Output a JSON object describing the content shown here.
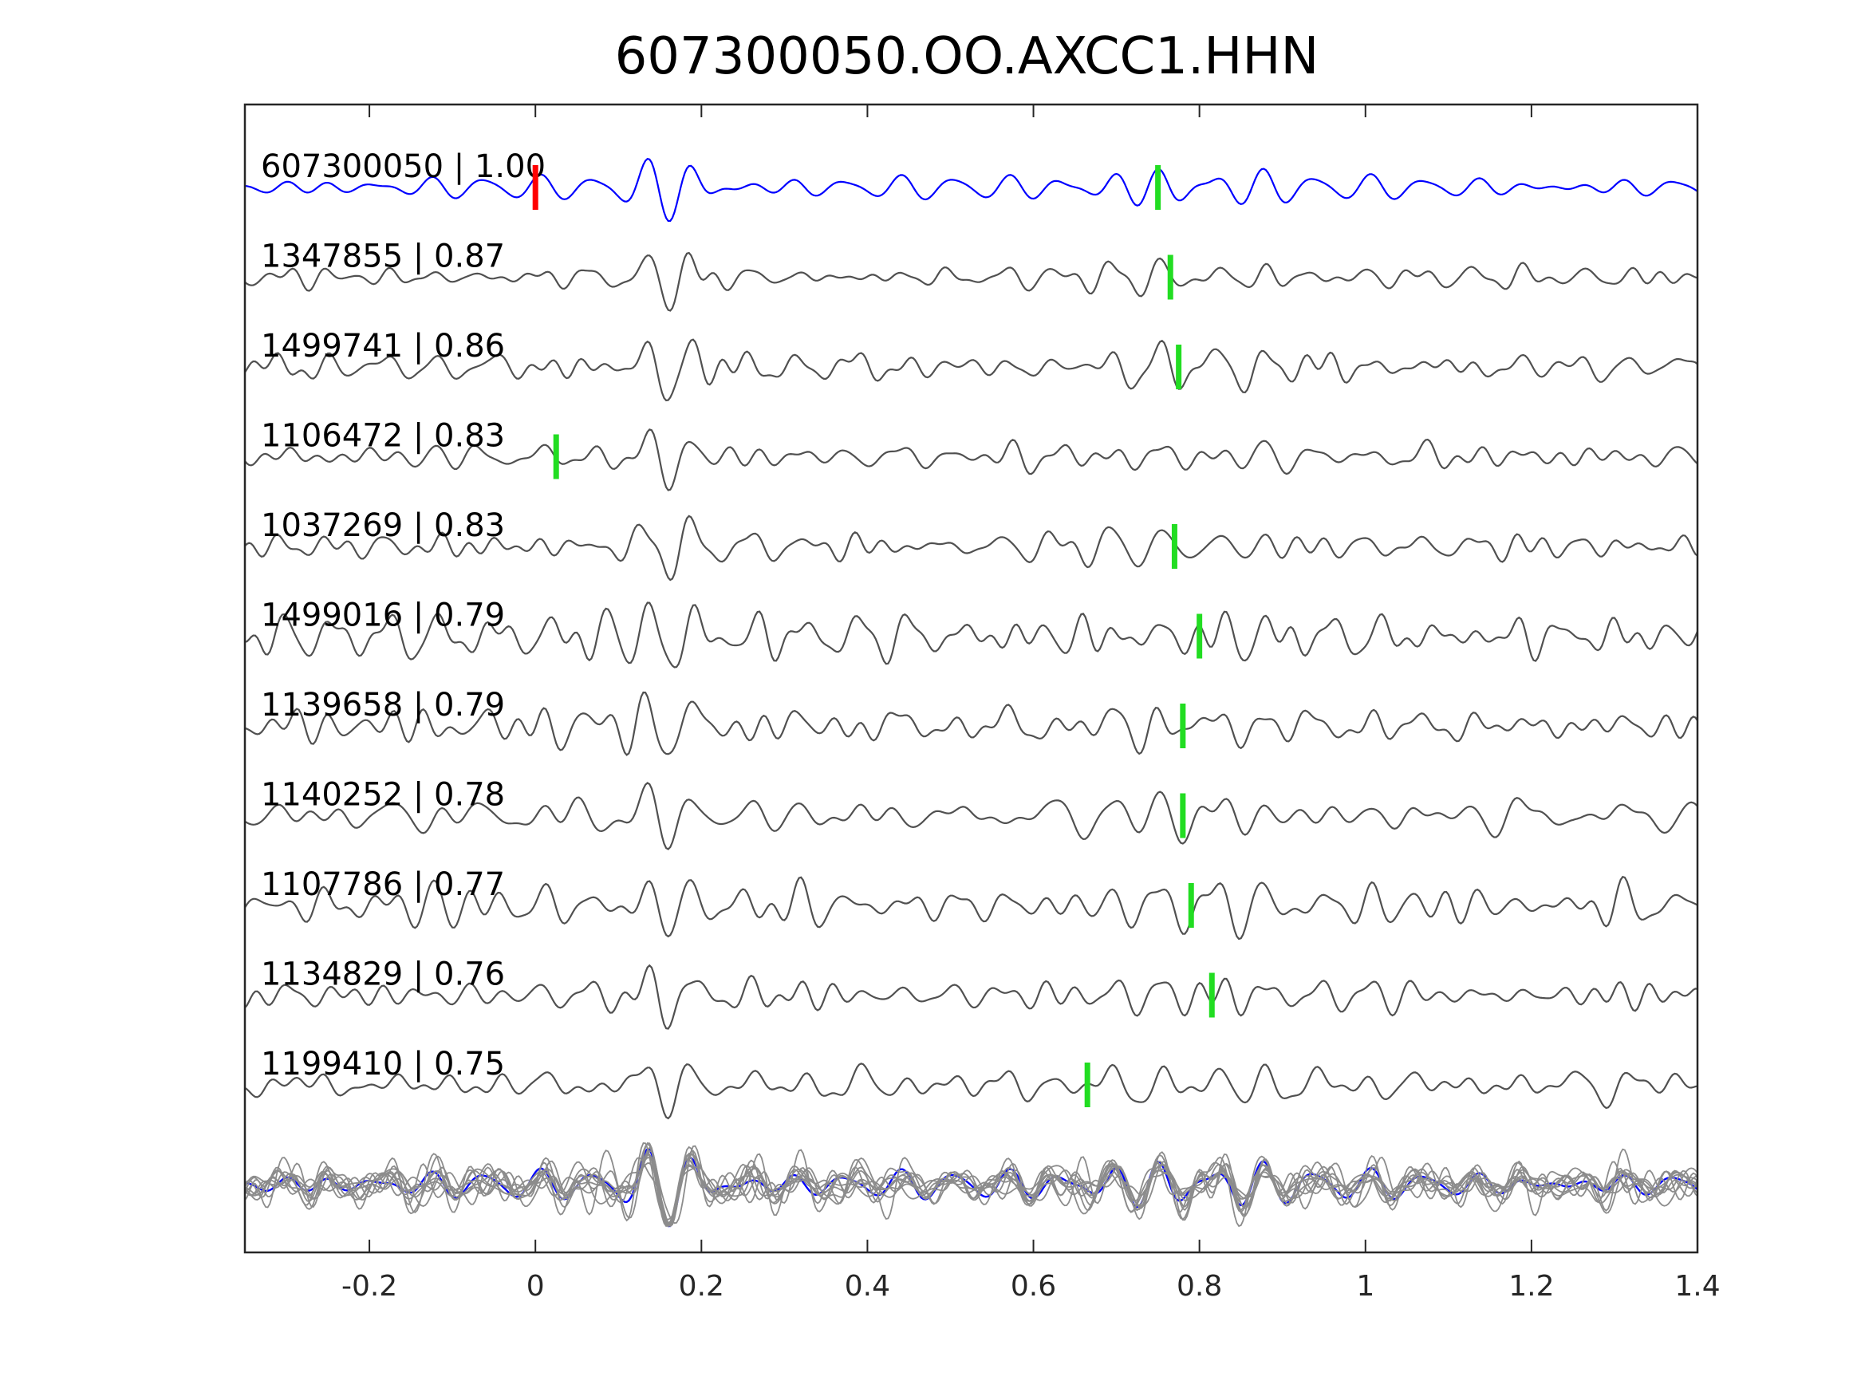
{
  "chart_data": {
    "type": "line",
    "title": "607300050.OO.AXCC1.HHN",
    "xlabel": "",
    "ylabel": "",
    "xlim": [
      -0.35,
      1.4
    ],
    "xticks": [
      {
        "value": -0.2,
        "label": "-0.2"
      },
      {
        "value": 0,
        "label": "0"
      },
      {
        "value": 0.2,
        "label": "0.2"
      },
      {
        "value": 0.4,
        "label": "0.4"
      },
      {
        "value": 0.6,
        "label": "0.6"
      },
      {
        "value": 0.8,
        "label": "0.8"
      },
      {
        "value": 1,
        "label": "1"
      },
      {
        "value": 1.2,
        "label": "1.2"
      },
      {
        "value": 1.4,
        "label": "1.4"
      }
    ],
    "grid": false,
    "colors": {
      "template": "#0000ff",
      "match": "#505050",
      "stack": "#8c8c8c",
      "origin_marker": "#ff0000",
      "pick_marker": "#22dd22",
      "axes": "#262626"
    },
    "series": [
      {
        "name": "607300050",
        "label": "607300050 | 1.00",
        "cc": 1.0,
        "role": "template",
        "origin_time": 0.0,
        "pick_time": 0.75
      },
      {
        "name": "1347855",
        "label": "1347855 | 0.87",
        "cc": 0.87,
        "role": "match",
        "pick_time": 0.765
      },
      {
        "name": "1499741",
        "label": "1499741 | 0.86",
        "cc": 0.86,
        "role": "match",
        "pick_time": 0.775
      },
      {
        "name": "1106472",
        "label": "1106472 | 0.83",
        "cc": 0.83,
        "role": "match",
        "pick_time": 0.025
      },
      {
        "name": "1037269",
        "label": "1037269 | 0.83",
        "cc": 0.83,
        "role": "match",
        "pick_time": 0.77
      },
      {
        "name": "1499016",
        "label": "1499016 | 0.79",
        "cc": 0.79,
        "role": "match",
        "pick_time": 0.8
      },
      {
        "name": "1139658",
        "label": "1139658 | 0.79",
        "cc": 0.79,
        "role": "match",
        "pick_time": 0.78
      },
      {
        "name": "1140252",
        "label": "1140252 | 0.78",
        "cc": 0.78,
        "role": "match",
        "pick_time": 0.78
      },
      {
        "name": "1107786",
        "label": "1107786 | 0.77",
        "cc": 0.77,
        "role": "match",
        "pick_time": 0.79
      },
      {
        "name": "1134829",
        "label": "1134829 | 0.76",
        "cc": 0.76,
        "role": "match",
        "pick_time": 0.815
      },
      {
        "name": "1199410",
        "label": "1199410 | 0.75",
        "cc": 0.75,
        "role": "match",
        "pick_time": 0.665
      }
    ],
    "stack": {
      "note": "all traces overlaid",
      "role": "stack"
    }
  }
}
